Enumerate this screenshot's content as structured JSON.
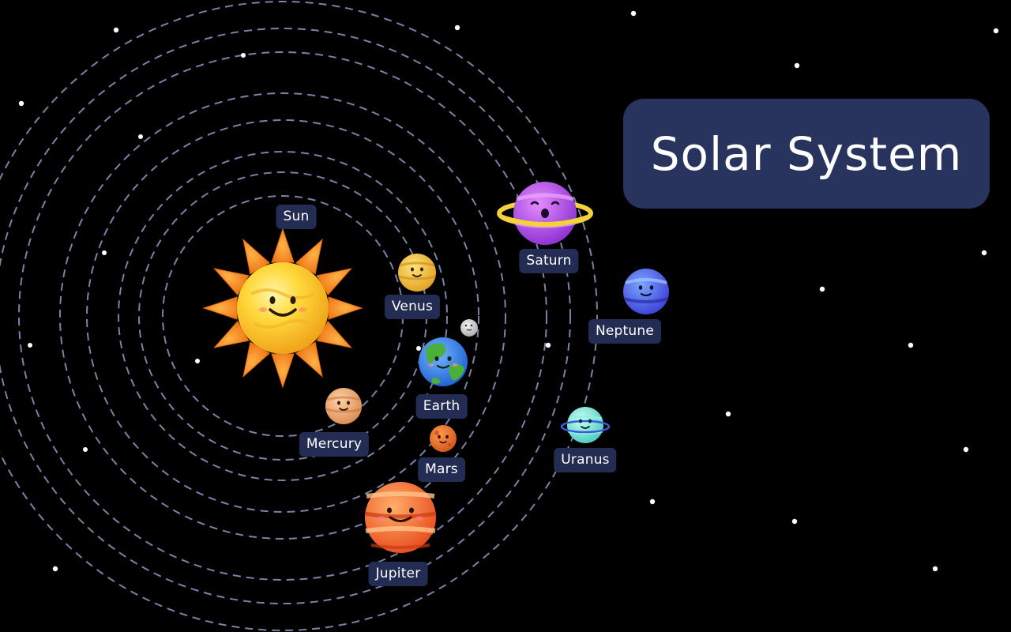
{
  "title": "Solar System",
  "colors": {
    "background": "#000000",
    "orbit": "#8f9bc4",
    "label_bg": "#232c52",
    "title_bg": "#28345e"
  },
  "bodies": {
    "sun": {
      "label": "Sun"
    },
    "mercury": {
      "label": "Mercury"
    },
    "venus": {
      "label": "Venus"
    },
    "earth": {
      "label": "Earth"
    },
    "mars": {
      "label": "Mars"
    },
    "jupiter": {
      "label": "Jupiter"
    },
    "saturn": {
      "label": "Saturn"
    },
    "uranus": {
      "label": "Uranus"
    },
    "neptune": {
      "label": "Neptune"
    }
  }
}
